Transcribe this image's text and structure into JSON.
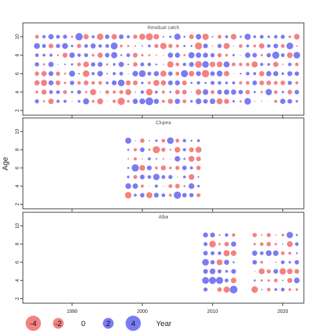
{
  "y_axis_label": "Age",
  "x_axis_label": "Year",
  "colors": {
    "positive": "#5a5af0",
    "negative": "#f06464",
    "frame": "#333333",
    "text": "#222222"
  },
  "legend": {
    "items": [
      {
        "value": -4,
        "label": "-4"
      },
      {
        "value": -2,
        "label": "-2"
      },
      {
        "value": 0,
        "label": "0"
      },
      {
        "value": 2,
        "label": "2"
      },
      {
        "value": 4,
        "label": "4"
      }
    ]
  },
  "chart_data": [
    {
      "type": "bubble",
      "title": "Residual catch",
      "xlim": [
        1983,
        2023
      ],
      "ylim": [
        1.5,
        11.5
      ],
      "xticks": [
        1990,
        2000,
        2010,
        2020
      ],
      "yticks": [
        2,
        4,
        6,
        8,
        10
      ],
      "years": [
        1985,
        2022
      ],
      "ages": [
        3,
        10
      ],
      "seed": 11
    },
    {
      "type": "bubble",
      "title": "Clupea",
      "xlim": [
        1983,
        2023
      ],
      "ylim": [
        1.5,
        11.5
      ],
      "xticks": [
        1990,
        2000,
        2010,
        2020
      ],
      "yticks": [
        2,
        4,
        6,
        8,
        10
      ],
      "years": [
        1998,
        2008
      ],
      "ages": [
        3,
        9
      ],
      "seed": 23
    },
    {
      "type": "bubble",
      "title": "Alba",
      "xlim": [
        1983,
        2023
      ],
      "ylim": [
        1.5,
        11.5
      ],
      "xticks": [
        1990,
        2000,
        2010,
        2020
      ],
      "yticks": [
        2,
        4,
        6,
        8,
        10
      ],
      "years": [
        2009,
        2013,
        2016,
        2022
      ],
      "ages": [
        3,
        9
      ],
      "seed": 37
    }
  ]
}
